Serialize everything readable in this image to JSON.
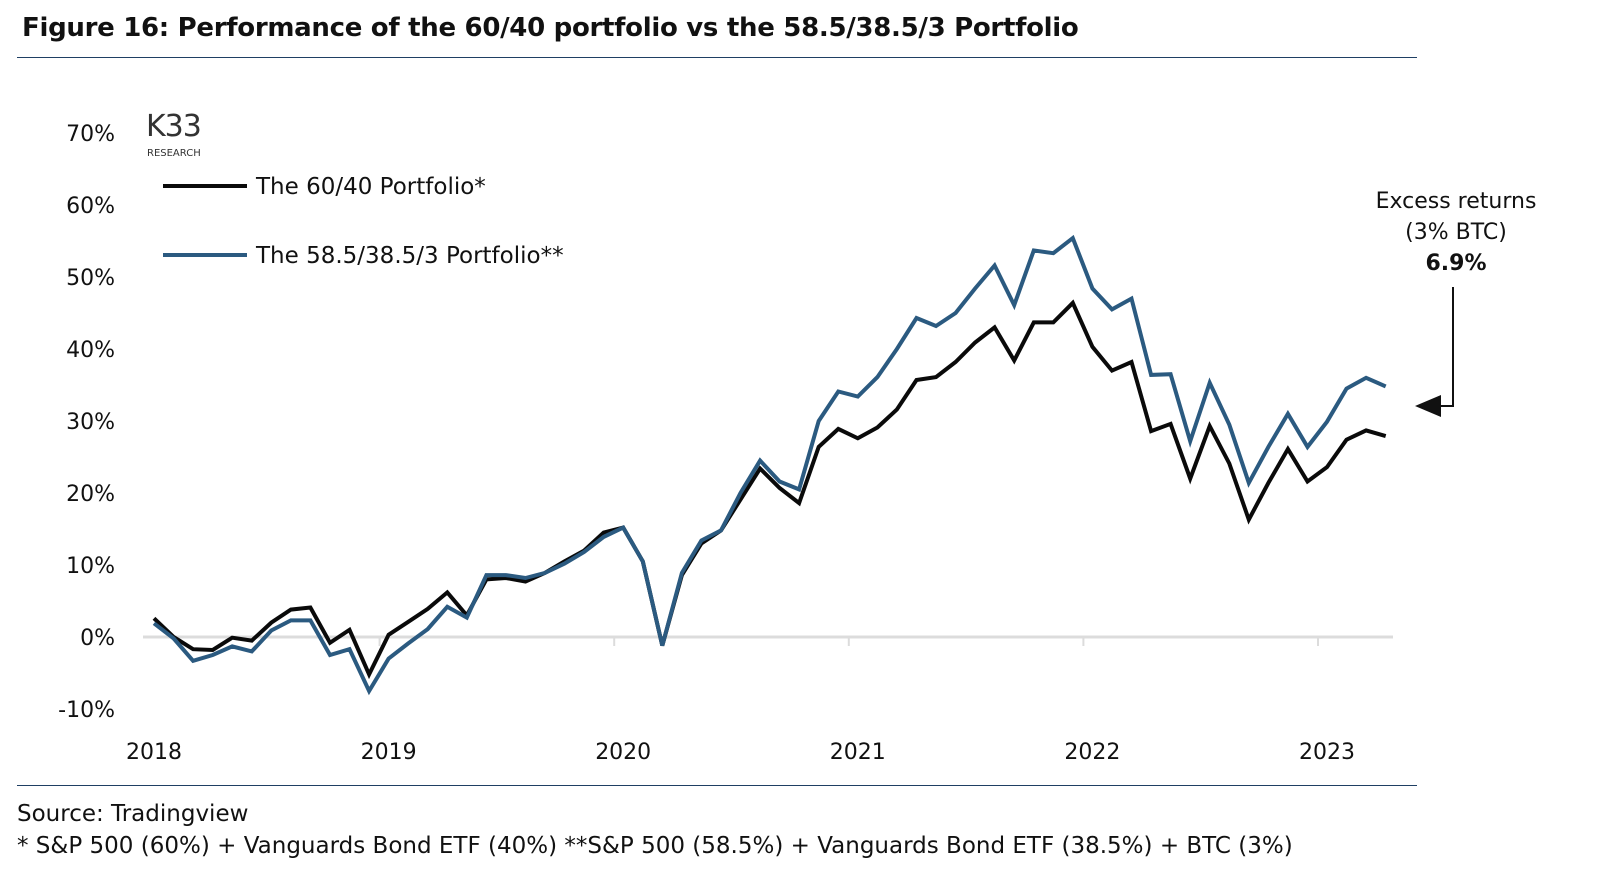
{
  "title": "Figure 16: Performance of the 60/40 portfolio vs the 58.5/38.5/3 Portfolio",
  "logo": {
    "main": "K33",
    "sub": "RESEARCH"
  },
  "source": "Source: Tradingview",
  "footnote": "* S&P 500 (60%) + Vanguards Bond ETF (40%) **S&P 500 (58.5%) + Vanguards Bond ETF (38.5%) + BTC (3%)",
  "annotation": {
    "line1": "Excess returns",
    "line2": "(3% BTC)",
    "value": "6.9%"
  },
  "chart_data": {
    "type": "line",
    "title": "",
    "xlabel": "",
    "ylabel": "",
    "x_start": "2018-01",
    "x_frequency": "monthly",
    "x_ticks": [
      "2018",
      "2019",
      "2020",
      "2021",
      "2022",
      "2023"
    ],
    "y_ticks": [
      "70%",
      "60%",
      "50%",
      "40%",
      "30%",
      "20%",
      "10%",
      "0%",
      "-10%"
    ],
    "ylim": [
      -10,
      70
    ],
    "grid": "zero line only",
    "legend_position": "top-left",
    "series": [
      {
        "name": "The 60/40 Portfolio*",
        "color": "#0a0a0a",
        "values": [
          2.6,
          0,
          -1.7,
          -1.8,
          -0.1,
          -0.5,
          2.0,
          3.8,
          4.1,
          -0.8,
          1.0,
          -5.2,
          0.3,
          2.1,
          3.9,
          6.2,
          3.0,
          8.0,
          8.2,
          7.7,
          8.9,
          10.5,
          12.0,
          14.5,
          15.2,
          10.5,
          -1.2,
          8.6,
          13.0,
          14.8,
          19.1,
          23.4,
          20.7,
          18.6,
          26.4,
          28.9,
          27.6,
          29.1,
          31.6,
          35.7,
          36.1,
          38.2,
          40.9,
          43.0,
          38.4,
          43.7,
          43.7,
          46.4,
          40.3,
          37.0,
          38.2,
          28.6,
          29.6,
          22.0,
          29.3,
          24.1,
          16.3,
          21.4,
          26.1,
          21.6,
          23.6,
          27.4,
          28.7,
          27.9
        ]
      },
      {
        "name": "The 58.5/38.5/3 Portfolio**",
        "color": "#2b5a80",
        "values": [
          1.9,
          -0.2,
          -3.3,
          -2.5,
          -1.3,
          -2.0,
          0.9,
          2.3,
          2.3,
          -2.5,
          -1.7,
          -7.5,
          -3.0,
          -0.9,
          1.1,
          4.2,
          2.7,
          8.6,
          8.6,
          8.2,
          8.9,
          10.2,
          11.8,
          13.9,
          15.2,
          10.5,
          -1.2,
          8.9,
          13.4,
          14.8,
          20.0,
          24.5,
          21.6,
          20.5,
          30.0,
          34.1,
          33.4,
          36.1,
          40.0,
          44.3,
          43.2,
          45.0,
          48.4,
          51.6,
          46.1,
          53.7,
          53.3,
          55.4,
          48.4,
          45.5,
          47.0,
          36.4,
          36.5,
          27.2,
          35.3,
          29.5,
          21.4,
          26.4,
          31.0,
          26.4,
          29.9,
          34.5,
          36.0,
          34.8
        ]
      }
    ]
  }
}
